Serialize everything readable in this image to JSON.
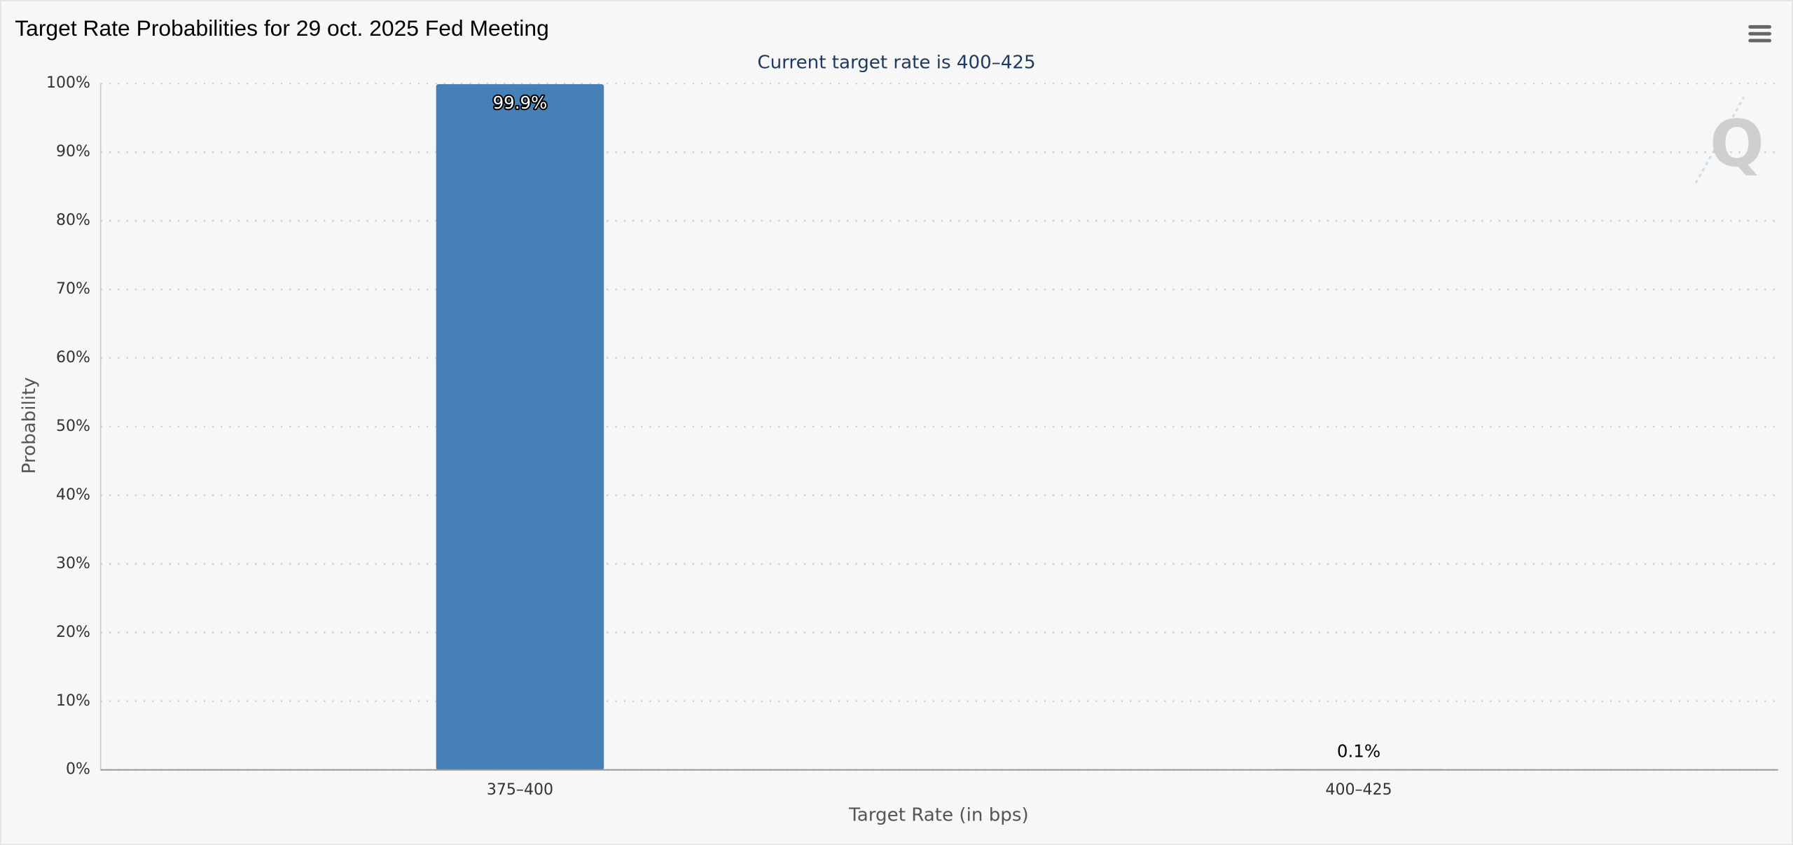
{
  "chart_data": {
    "type": "bar",
    "title": "Target Rate Probabilities for 29 oct. 2025 Fed Meeting",
    "subtitle": "Current target rate is 400–425",
    "x_label": "Target Rate (in bps)",
    "y_label": "Probability",
    "categories": [
      "375–400",
      "400–425"
    ],
    "values": [
      99.9,
      0.1
    ],
    "value_labels": [
      "99.9%",
      "0.1%"
    ],
    "color": "#4580b7",
    "ylim": [
      0,
      100
    ],
    "yticks": [
      {
        "value": 0,
        "label": "0%"
      },
      {
        "value": 10,
        "label": "10%"
      },
      {
        "value": 20,
        "label": "20%"
      },
      {
        "value": 30,
        "label": "30%"
      },
      {
        "value": 40,
        "label": "40%"
      },
      {
        "value": 50,
        "label": "50%"
      },
      {
        "value": 60,
        "label": "60%"
      },
      {
        "value": 70,
        "label": "70%"
      },
      {
        "value": 80,
        "label": "80%"
      },
      {
        "value": 90,
        "label": "90%"
      },
      {
        "value": 100,
        "label": "100%"
      }
    ],
    "grid": true
  }
}
